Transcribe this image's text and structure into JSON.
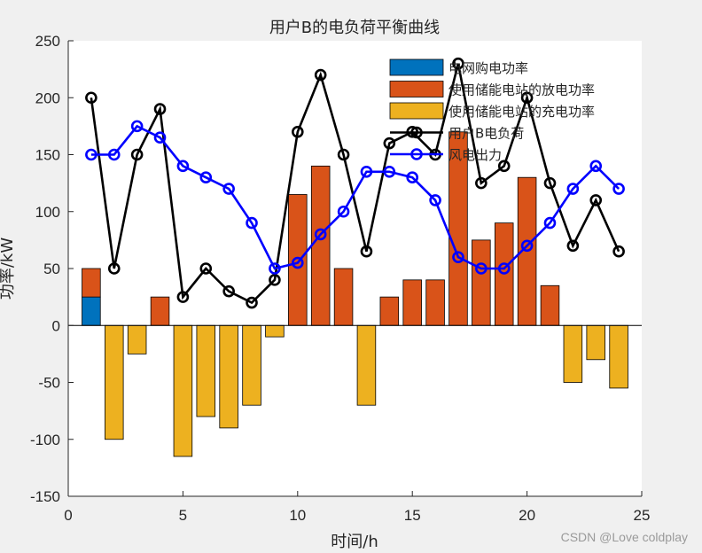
{
  "chart_data": {
    "type": "bar",
    "title": "用户B的电负荷平衡曲线",
    "xlabel": "时间/h",
    "ylabel": "功率/kW",
    "xlim": [
      0,
      25
    ],
    "ylim": [
      -150,
      250
    ],
    "xticks": [
      0,
      5,
      10,
      15,
      20,
      25
    ],
    "yticks": [
      -150,
      -100,
      -50,
      0,
      50,
      100,
      150,
      200,
      250
    ],
    "x": [
      1,
      2,
      3,
      4,
      5,
      6,
      7,
      8,
      9,
      10,
      11,
      12,
      13,
      14,
      15,
      16,
      17,
      18,
      19,
      20,
      21,
      22,
      23,
      24
    ],
    "series": [
      {
        "name": "电网购电功率",
        "kind": "bar",
        "color": "#0072BD",
        "values": [
          25,
          0,
          0,
          0,
          0,
          0,
          0,
          0,
          0,
          0,
          0,
          0,
          0,
          0,
          0,
          0,
          0,
          0,
          0,
          0,
          0,
          0,
          0,
          0
        ]
      },
      {
        "name": "使用储能电站的放电功率",
        "kind": "bar",
        "color": "#D95319",
        "values": [
          25,
          0,
          0,
          25,
          0,
          0,
          0,
          0,
          0,
          115,
          140,
          50,
          0,
          25,
          40,
          40,
          170,
          75,
          90,
          130,
          35,
          0,
          0,
          0
        ]
      },
      {
        "name": "使用储能电站的充电功率",
        "kind": "bar",
        "color": "#EDB120",
        "values": [
          0,
          -100,
          -25,
          0,
          -115,
          -80,
          -90,
          -70,
          -10,
          0,
          0,
          0,
          -70,
          0,
          0,
          0,
          0,
          0,
          0,
          0,
          0,
          -50,
          -30,
          -55
        ]
      },
      {
        "name": "用户B电负荷",
        "kind": "line",
        "color": "#000000",
        "values": [
          200,
          50,
          150,
          190,
          25,
          50,
          30,
          20,
          40,
          170,
          220,
          150,
          65,
          160,
          170,
          150,
          230,
          125,
          140,
          200,
          125,
          70,
          110,
          65
        ]
      },
      {
        "name": "风电出力",
        "kind": "line",
        "color": "#0000FF",
        "values": [
          150,
          150,
          175,
          165,
          140,
          130,
          120,
          90,
          50,
          55,
          80,
          100,
          135,
          135,
          130,
          110,
          60,
          50,
          50,
          70,
          90,
          120,
          140,
          120
        ]
      }
    ],
    "legend_position": "top-right",
    "grid": false
  },
  "watermark": "CSDN @Love coldplay"
}
